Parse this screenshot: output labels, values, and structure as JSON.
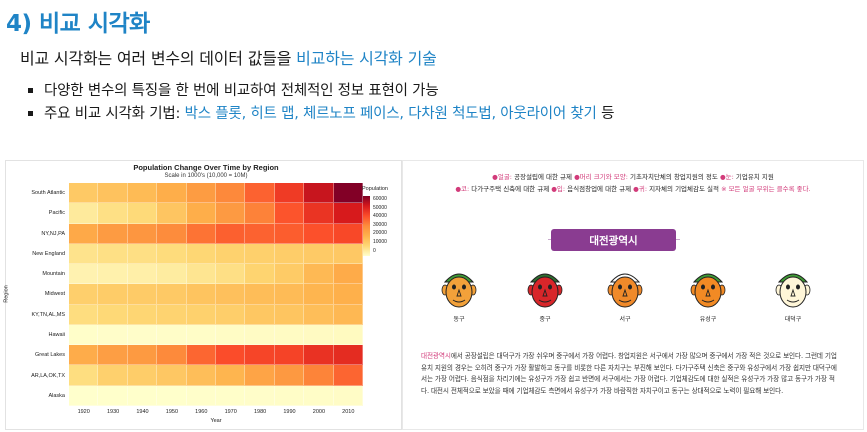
{
  "title": "4) 비교 시각화",
  "subtitle": {
    "part1": "비교 시각화는 여러 변수의 데이터 값들을 ",
    "highlight": "비교하는 시각화 기술"
  },
  "bullets": [
    {
      "text": "다양한 변수의 특징을 한 번에 비교하여 전체적인 정보 표현이 가능"
    },
    {
      "prefix": "주요 비교 시각화 기법: ",
      "highlight": "박스 플롯, 히트 맵, 체르노프 페이스, 다차원 척도법, 아웃라이어 찾기",
      "suffix": " 등"
    }
  ],
  "chart_data": {
    "type": "heatmap",
    "title": "Population Change Over Time by Region",
    "subtitle": "Scale in 1000's (10,000 = 10M)",
    "xlabel": "Year",
    "ylabel": "Region",
    "x": [
      "1920",
      "1930",
      "1940",
      "1950",
      "1960",
      "1970",
      "1980",
      "1990",
      "2000",
      "2010"
    ],
    "y": [
      "South Atlantic",
      "Pacific",
      "NY,NJ,PA",
      "New England",
      "Mountain",
      "Midwest",
      "KY,TN,AL,MS",
      "Hawaii",
      "Great Lakes",
      "AR,LA,OK,TX",
      "Alaska"
    ],
    "values": [
      [
        14000,
        15800,
        17800,
        21200,
        26000,
        30700,
        36900,
        43600,
        51800,
        59800
      ],
      [
        5600,
        8200,
        9700,
        15100,
        21200,
        26500,
        31800,
        39100,
        45000,
        49900
      ],
      [
        22300,
        26300,
        27500,
        30200,
        34200,
        37200,
        36800,
        37600,
        39700,
        41100
      ],
      [
        7400,
        8200,
        8400,
        9300,
        10500,
        11800,
        12300,
        13200,
        13900,
        14400
      ],
      [
        3300,
        3700,
        4200,
        5100,
        6900,
        8300,
        11400,
        13700,
        18200,
        22000
      ],
      [
        12500,
        13300,
        13500,
        14100,
        15400,
        16300,
        17200,
        17700,
        19200,
        20500
      ],
      [
        8900,
        9900,
        10800,
        11500,
        12100,
        12800,
        14700,
        15200,
        17000,
        18400
      ],
      [
        300,
        400,
        400,
        500,
        600,
        800,
        960,
        1100,
        1200,
        1400
      ],
      [
        21500,
        25300,
        26600,
        30400,
        36200,
        40300,
        41700,
        42000,
        45200,
        46400
      ],
      [
        8800,
        12200,
        13100,
        14500,
        17000,
        19300,
        23700,
        26700,
        31400,
        36300
      ],
      [
        55,
        59,
        73,
        129,
        226,
        300,
        402,
        550,
        627,
        710
      ]
    ],
    "colorbar": {
      "label": "Population",
      "ticks": [
        "60000",
        "50000",
        "40000",
        "30000",
        "20000",
        "10000",
        "0"
      ],
      "colors": [
        "#ffffcc",
        "#fed976",
        "#feb24c",
        "#fd8d3c",
        "#fc4e2a",
        "#d7191c",
        "#800026"
      ],
      "range": [
        0,
        60000
      ]
    },
    "grid": false
  },
  "faces": {
    "legend_line1": [
      {
        "mark": "●얼굴:",
        "text": " 공장설립에 대한 규제 "
      },
      {
        "mark": "●머리 크기와 모양:",
        "text": " 기초자치단체의 창업지원의 정도 "
      },
      {
        "mark": "●눈:",
        "text": " 기업유치 지원"
      }
    ],
    "legend_line2": [
      {
        "mark": "●코:",
        "text": " 다가구주택 신축에 대한 규제 "
      },
      {
        "mark": "●입:",
        "text": " 음식점창업에 대한 규제 "
      },
      {
        "mark": "●귀:",
        "text": " 지자체의 기업체감도 실적 "
      },
      {
        "mark": "※ 모든 얼굴 부위는 클수록 좋다.",
        "text": ""
      }
    ],
    "banner": "대전광역시",
    "items": [
      {
        "name": "동구",
        "face": "#f2a13a",
        "hair": "#3f9a35"
      },
      {
        "name": "중구",
        "face": "#d8262a",
        "hair": "#2f6e2f"
      },
      {
        "name": "서구",
        "face": "#f08a2a",
        "hair": "#ffffff"
      },
      {
        "name": "유성구",
        "face": "#f28a24",
        "hair": "#3f9a35"
      },
      {
        "name": "대덕구",
        "face": "#fff6d8",
        "hair": "#3f9a35"
      }
    ],
    "paragraph": {
      "highlight": "대전광역시",
      "text": "에서 공장설립은 대덕구가 가장 쉬우며 중구에서 가장 어렵다. 창업지원은 서구에서 가장 많으며 중구에서 가장 적은 것으로 보인다. 그런데 기업유치 지원의 경우는 오히려 중구가 가장 활발하고 동구를 비롯한 다른 자치구는 부진해 보인다. 다가구주택 신축은 중구와 유성구에서 가장 쉽지만 대덕구에서는 가장 어렵다. 음식점을 차리기에는 유성구가 가장 쉽고 반면에 서구에서는 가장 어렵다. 기업체감도에 대한 실적은 유성구가 가장 많고 동구가 가장 적다. 대전시 전체적으로 보았을 때에 기업체감도 측면에서 유성구가 가장 바람직한 자치구이고 동구는 상대적으로 노력이 필요해 보인다."
    }
  }
}
